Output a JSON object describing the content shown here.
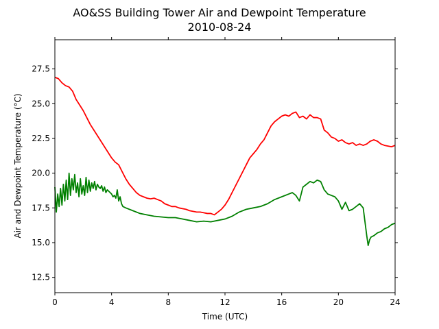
{
  "chart_data": {
    "type": "line",
    "title": "AO&SS Building Tower Air and Dewpoint Temperature",
    "subtitle": "2010-08-24",
    "xlabel": "Time (UTC)",
    "ylabel": "Air and Dewpoint Temperature (°C)",
    "xlim": [
      0,
      24
    ],
    "ylim": [
      11.4,
      29.6
    ],
    "xticks": [
      0,
      4,
      8,
      12,
      16,
      20,
      24
    ],
    "yticks": [
      12.5,
      15.0,
      17.5,
      20.0,
      22.5,
      25.0,
      27.5
    ],
    "ytick_labels": [
      "12.5",
      "15.0",
      "17.5",
      "20.0",
      "22.5",
      "25.0",
      "27.5"
    ],
    "grid": false,
    "legend": "none",
    "series": [
      {
        "color": "#ff0000",
        "x": [
          0,
          0.25,
          0.5,
          0.75,
          1.0,
          1.25,
          1.5,
          1.75,
          2.0,
          2.25,
          2.5,
          2.75,
          3.0,
          3.25,
          3.5,
          3.75,
          4.0,
          4.25,
          4.5,
          4.75,
          5.0,
          5.25,
          5.5,
          5.75,
          6.0,
          6.25,
          6.5,
          6.75,
          7.0,
          7.25,
          7.5,
          7.75,
          8.0,
          8.25,
          8.5,
          8.75,
          9.0,
          9.25,
          9.5,
          9.75,
          10.0,
          10.25,
          10.5,
          10.75,
          11.0,
          11.25,
          11.5,
          11.75,
          12.0,
          12.25,
          12.5,
          12.75,
          13.0,
          13.25,
          13.5,
          13.75,
          14.0,
          14.25,
          14.5,
          14.75,
          15.0,
          15.25,
          15.5,
          15.75,
          16.0,
          16.25,
          16.5,
          16.75,
          17.0,
          17.25,
          17.5,
          17.75,
          18.0,
          18.25,
          18.5,
          18.75,
          19.0,
          19.25,
          19.5,
          19.75,
          20.0,
          20.25,
          20.5,
          20.75,
          21.0,
          21.25,
          21.5,
          21.75,
          22.0,
          22.25,
          22.5,
          22.75,
          23.0,
          23.25,
          23.5,
          23.75,
          24.0
        ],
        "y": [
          26.9,
          26.8,
          26.5,
          26.3,
          26.2,
          25.9,
          25.3,
          24.9,
          24.5,
          24.0,
          23.5,
          23.1,
          22.7,
          22.3,
          21.9,
          21.5,
          21.1,
          20.8,
          20.6,
          20.1,
          19.6,
          19.2,
          18.9,
          18.6,
          18.4,
          18.3,
          18.2,
          18.15,
          18.2,
          18.1,
          18.0,
          17.8,
          17.7,
          17.6,
          17.6,
          17.5,
          17.45,
          17.4,
          17.3,
          17.25,
          17.2,
          17.2,
          17.15,
          17.1,
          17.1,
          17.0,
          17.2,
          17.4,
          17.7,
          18.1,
          18.6,
          19.1,
          19.6,
          20.1,
          20.6,
          21.1,
          21.4,
          21.7,
          22.1,
          22.4,
          22.9,
          23.4,
          23.7,
          23.9,
          24.1,
          24.2,
          24.1,
          24.3,
          24.4,
          24.0,
          24.1,
          23.9,
          24.2,
          24.0,
          24.0,
          23.9,
          23.1,
          22.9,
          22.6,
          22.5,
          22.3,
          22.4,
          22.2,
          22.1,
          22.2,
          22.0,
          22.1,
          22.0,
          22.1,
          22.3,
          22.4,
          22.3,
          22.1,
          22.0,
          21.95,
          21.9,
          22.0
        ]
      },
      {
        "color": "#008000",
        "x": [
          0,
          0.1,
          0.2,
          0.3,
          0.4,
          0.5,
          0.6,
          0.7,
          0.8,
          0.9,
          1.0,
          1.1,
          1.2,
          1.3,
          1.4,
          1.5,
          1.6,
          1.7,
          1.8,
          1.9,
          2.0,
          2.1,
          2.2,
          2.3,
          2.4,
          2.5,
          2.6,
          2.7,
          2.8,
          2.9,
          3.0,
          3.1,
          3.2,
          3.3,
          3.4,
          3.5,
          3.6,
          3.7,
          3.8,
          3.9,
          4.0,
          4.1,
          4.2,
          4.3,
          4.4,
          4.5,
          4.6,
          4.7,
          4.8,
          5.0,
          5.5,
          6.0,
          6.5,
          7.0,
          7.5,
          8.0,
          8.5,
          9.0,
          9.5,
          10.0,
          10.5,
          11.0,
          11.5,
          12.0,
          12.5,
          13.0,
          13.5,
          14.0,
          14.5,
          15.0,
          15.5,
          16.0,
          16.5,
          16.75,
          17.0,
          17.25,
          17.5,
          17.75,
          18.0,
          18.25,
          18.5,
          18.75,
          19.0,
          19.25,
          19.5,
          19.75,
          20.0,
          20.25,
          20.5,
          20.75,
          21.0,
          21.25,
          21.5,
          21.75,
          22.0,
          22.1,
          22.2,
          22.3,
          22.5,
          22.75,
          23.0,
          23.25,
          23.5,
          23.75,
          24.0
        ],
        "y": [
          19.0,
          17.2,
          18.5,
          17.6,
          18.9,
          17.7,
          19.2,
          18.0,
          19.5,
          18.1,
          20.0,
          18.4,
          19.6,
          18.8,
          19.9,
          18.6,
          19.3,
          18.3,
          19.6,
          18.5,
          19.1,
          18.4,
          19.7,
          18.6,
          19.5,
          18.7,
          19.3,
          18.9,
          19.4,
          18.8,
          19.2,
          19.0,
          18.9,
          19.1,
          18.7,
          19.0,
          18.6,
          18.8,
          18.7,
          18.6,
          18.5,
          18.3,
          18.4,
          18.2,
          18.8,
          18.0,
          18.3,
          17.8,
          17.6,
          17.5,
          17.3,
          17.1,
          17.0,
          16.9,
          16.85,
          16.8,
          16.8,
          16.7,
          16.6,
          16.5,
          16.55,
          16.5,
          16.6,
          16.7,
          16.9,
          17.2,
          17.4,
          17.5,
          17.6,
          17.8,
          18.1,
          18.3,
          18.5,
          18.6,
          18.4,
          18.0,
          19.0,
          19.2,
          19.4,
          19.3,
          19.5,
          19.4,
          18.8,
          18.5,
          18.4,
          18.3,
          18.0,
          17.4,
          17.9,
          17.3,
          17.4,
          17.6,
          17.8,
          17.5,
          15.5,
          14.8,
          15.2,
          15.4,
          15.5,
          15.7,
          15.8,
          16.0,
          16.1,
          16.3,
          16.4
        ]
      }
    ]
  }
}
